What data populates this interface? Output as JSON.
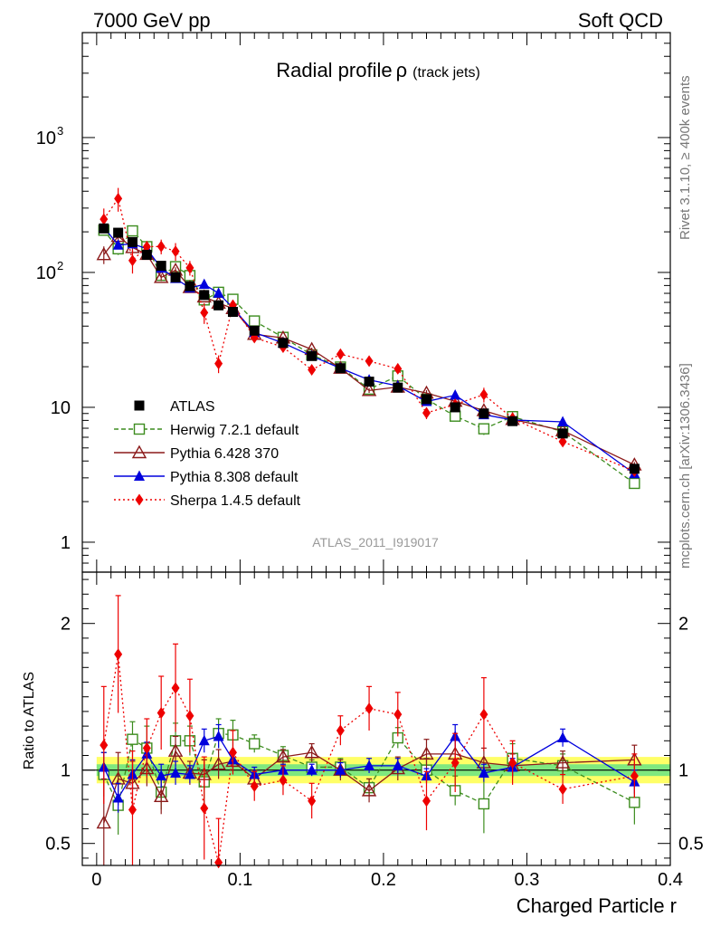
{
  "header": {
    "left": "7000 GeV pp",
    "right": "Soft QCD"
  },
  "side_labels": {
    "rivet": "Rivet 3.1.10, ≥ 400k events",
    "mcplots": "mcplots.cern.ch [arXiv:1306.3436]"
  },
  "chart_data": {
    "type": "line",
    "title": "Radial profile",
    "title_symbol": "ρ",
    "title_suffix": "(track jets)",
    "analysis_id": "ATLAS_2011_I919017",
    "xlabel": "Charged Particle r",
    "ylabel": "",
    "ratio_ylabel": "Ratio to ATLAS",
    "xlim": [
      -0.01,
      0.4
    ],
    "ylim": [
      0.6,
      6000
    ],
    "yscale": "log",
    "ratio_ylim": [
      0.35,
      2.35
    ],
    "x_ticks": [
      "0",
      "0.1",
      "0.2",
      "0.3",
      "0.4"
    ],
    "y_ticks": [
      "1",
      "10",
      "10",
      "10"
    ],
    "y_tick_exponents": [
      "",
      "",
      "2",
      "3"
    ],
    "ratio_ticks": [
      "0.5",
      "1",
      "2"
    ],
    "legend_position": "lower-left",
    "x": [
      0.005,
      0.015,
      0.025,
      0.035,
      0.045,
      0.055,
      0.065,
      0.075,
      0.085,
      0.095,
      0.11,
      0.13,
      0.15,
      0.17,
      0.19,
      0.21,
      0.23,
      0.25,
      0.27,
      0.29,
      0.325,
      0.375
    ],
    "atlas": {
      "name": "ATLAS",
      "values": [
        212,
        197,
        168,
        135,
        112,
        92,
        79,
        68,
        57,
        51,
        37,
        30,
        24,
        19.5,
        15.5,
        14,
        11.5,
        10,
        9,
        7.9,
        6.4,
        3.5
      ],
      "band_inner": 0.04,
      "band_outer": 0.09
    },
    "series": [
      {
        "name": "Herwig 7.2.1 default",
        "color": "#3c8c1e",
        "dash": "5,3",
        "marker": "open-square",
        "ratio": [
          0.97,
          0.76,
          1.21,
          1.15,
          0.85,
          1.2,
          1.2,
          0.92,
          1.25,
          1.24,
          1.18,
          1.1,
          1.02,
          1.02,
          0.88,
          1.22,
          1.0,
          0.86,
          0.77,
          1.08,
          1.03,
          0.78
        ],
        "ratio_err": [
          0.15,
          0.2,
          0.12,
          0.15,
          0.12,
          0.12,
          0.1,
          0.15,
          0.1,
          0.1,
          0.06,
          0.06,
          0.05,
          0.06,
          0.06,
          0.07,
          0.08,
          0.1,
          0.2,
          0.1,
          0.08,
          0.15
        ]
      },
      {
        "name": "Pythia 6.428 370",
        "color": "#8b1a1a",
        "dash": "",
        "marker": "open-triangle",
        "ratio": [
          0.64,
          0.94,
          0.91,
          1.01,
          0.82,
          1.13,
          0.98,
          0.97,
          1.04,
          1.06,
          0.94,
          1.09,
          1.12,
          1.0,
          0.86,
          1.01,
          1.11,
          1.11,
          1.05,
          1.03,
          1.05,
          1.07
        ],
        "ratio_err": [
          0.3,
          0.18,
          0.15,
          0.12,
          0.12,
          0.1,
          0.08,
          0.1,
          0.1,
          0.07,
          0.06,
          0.05,
          0.06,
          0.07,
          0.08,
          0.08,
          0.1,
          0.1,
          0.1,
          0.08,
          0.08,
          0.1
        ]
      },
      {
        "name": "Pythia 8.308 default",
        "color": "#0000dd",
        "dash": "",
        "marker": "triangle",
        "ratio": [
          1.02,
          0.81,
          0.97,
          1.11,
          0.96,
          0.98,
          0.97,
          1.2,
          1.23,
          1.07,
          0.97,
          1.0,
          1.0,
          1.0,
          1.03,
          1.03,
          0.96,
          1.23,
          0.98,
          1.02,
          1.22,
          0.92
        ],
        "ratio_err": [
          0.1,
          0.1,
          0.1,
          0.08,
          0.08,
          0.08,
          0.06,
          0.08,
          0.08,
          0.06,
          0.05,
          0.04,
          0.04,
          0.05,
          0.05,
          0.05,
          0.05,
          0.08,
          0.06,
          0.06,
          0.06,
          0.08
        ]
      },
      {
        "name": "Sherpa 1.4.5 default",
        "color": "#ee0000",
        "dash": "2,3",
        "marker": "diamond",
        "ratio": [
          1.17,
          1.79,
          0.73,
          1.15,
          1.39,
          1.56,
          1.37,
          0.74,
          0.37,
          1.12,
          0.89,
          0.93,
          0.79,
          1.27,
          1.42,
          1.38,
          0.79,
          1.05,
          1.38,
          1.05,
          0.87,
          0.96
        ],
        "ratio_err": [
          0.4,
          0.4,
          0.4,
          0.2,
          0.25,
          0.3,
          0.25,
          0.35,
          0.3,
          0.15,
          0.1,
          0.1,
          0.12,
          0.1,
          0.15,
          0.15,
          0.2,
          0.2,
          0.25,
          0.15,
          0.1,
          0.15
        ]
      }
    ]
  }
}
